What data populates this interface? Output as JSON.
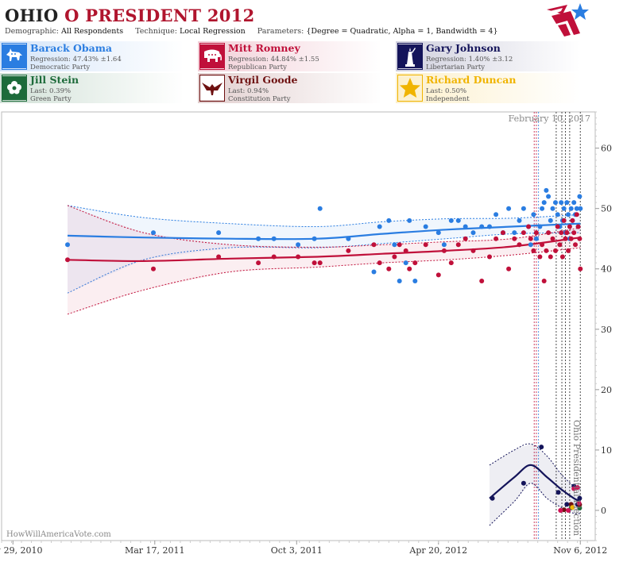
{
  "header": {
    "title_main": "OHIO",
    "title_sub": "O PRESIDENT 2012",
    "demographic_label": "Demographic:",
    "demographic_value": "All Respondents",
    "technique_label": "Technique:",
    "technique_value": "Local Regression",
    "parameters_label": "Parameters:",
    "parameters_value": "{Degree = Quadratic, Alpha = 1, Bandwidth = 4}"
  },
  "candidates": [
    {
      "name": "Barack Obama",
      "line1": "Regression: 47.43% ±1.64",
      "line2": "Democratic Party",
      "color": "#2a7de1",
      "icon": "donkey-icon"
    },
    {
      "name": "Mitt Romney",
      "line1": "Regression: 44.84% ±1.55",
      "line2": "Republican Party",
      "color": "#c0103a",
      "icon": "elephant-icon"
    },
    {
      "name": "Gary Johnson",
      "line1": "Regression: 1.40% ±3.12",
      "line2": "Libertarian Party",
      "color": "#14145a",
      "icon": "statue-of-liberty-icon"
    },
    {
      "name": "Jill Stein",
      "line1": "Last: 0.39%",
      "line2": "Green Party",
      "color": "#1d6b3a",
      "icon": "flower-icon"
    },
    {
      "name": "Virgil Goode",
      "line1": "Last: 0.94%",
      "line2": "Constitution Party",
      "color": "#6e1111",
      "icon": "eagle-icon"
    },
    {
      "name": "Richard Duncan",
      "line1": "Last: 0.50%",
      "line2": "Independent",
      "color": "#f0b400",
      "icon": "star-icon"
    }
  ],
  "chart_data": {
    "type": "scatter",
    "date_label": "February 10, 2017",
    "watermark": "HowWillAmericaVote.com",
    "election_label": "Ohio Presidential Election",
    "ylim": [
      -5,
      66
    ],
    "yticks": [
      0,
      10,
      20,
      30,
      40,
      50,
      60
    ],
    "xlim": [
      "2010-08-13",
      "2012-11-27"
    ],
    "xticks": [
      {
        "label": "Aug 29, 2010",
        "date": "2010-08-29"
      },
      {
        "label": "Mar 17, 2011",
        "date": "2011-03-17"
      },
      {
        "label": "Oct 3, 2011",
        "date": "2011-10-03"
      },
      {
        "label": "Apr 20, 2012",
        "date": "2012-04-20"
      },
      {
        "label": "Nov 6, 2012",
        "date": "2012-11-06"
      }
    ],
    "vlines": [
      {
        "date": "2012-09-02",
        "color": "#c0103a"
      },
      {
        "date": "2012-09-05",
        "color": "#c0103a"
      },
      {
        "date": "2012-09-08",
        "color": "#2a7de1"
      },
      {
        "date": "2012-10-03",
        "color": "#222222"
      },
      {
        "date": "2012-10-11",
        "color": "#222222"
      },
      {
        "date": "2012-10-16",
        "color": "#222222"
      },
      {
        "date": "2012-10-22",
        "color": "#222222"
      },
      {
        "date": "2012-11-06",
        "color": "#222222"
      }
    ],
    "series": [
      {
        "name": "Barack Obama",
        "color": "#2a7de1",
        "trend": [
          [
            "2010-11-14",
            45.5
          ],
          [
            "2011-03-01",
            45.2
          ],
          [
            "2011-07-01",
            45.0
          ],
          [
            "2011-11-01",
            45.0
          ],
          [
            "2012-02-01",
            45.8
          ],
          [
            "2012-05-01",
            46.5
          ],
          [
            "2012-08-01",
            47.0
          ],
          [
            "2012-11-06",
            47.5
          ]
        ],
        "band_upper": [
          [
            "2010-11-14",
            50.5
          ],
          [
            "2011-03-01",
            48.5
          ],
          [
            "2011-07-01",
            47.5
          ],
          [
            "2011-11-01",
            47.0
          ],
          [
            "2012-02-01",
            47.8
          ],
          [
            "2012-05-01",
            48.3
          ],
          [
            "2012-08-01",
            48.4
          ],
          [
            "2012-11-06",
            49.0
          ]
        ],
        "band_lower": [
          [
            "2010-11-14",
            36.0
          ],
          [
            "2011-03-01",
            41.5
          ],
          [
            "2011-07-01",
            43.5
          ],
          [
            "2011-11-01",
            43.5
          ],
          [
            "2012-02-01",
            44.2
          ],
          [
            "2012-05-01",
            45.0
          ],
          [
            "2012-08-01",
            45.8
          ],
          [
            "2012-11-06",
            46.0
          ]
        ],
        "points": [
          [
            "2010-11-14",
            44
          ],
          [
            "2011-03-15",
            46
          ],
          [
            "2011-06-15",
            46
          ],
          [
            "2011-08-10",
            45
          ],
          [
            "2011-09-01",
            45
          ],
          [
            "2011-10-05",
            44
          ],
          [
            "2011-10-28",
            45
          ],
          [
            "2011-11-05",
            50
          ],
          [
            "2011-12-15",
            45
          ],
          [
            "2012-01-20",
            39.5
          ],
          [
            "2012-01-28",
            47
          ],
          [
            "2012-02-10",
            48
          ],
          [
            "2012-02-18",
            44
          ],
          [
            "2012-02-25",
            38
          ],
          [
            "2012-03-05",
            41
          ],
          [
            "2012-03-10",
            48
          ],
          [
            "2012-03-18",
            38
          ],
          [
            "2012-04-02",
            47
          ],
          [
            "2012-04-20",
            46
          ],
          [
            "2012-04-28",
            44
          ],
          [
            "2012-05-08",
            48
          ],
          [
            "2012-05-18",
            48
          ],
          [
            "2012-05-28",
            47
          ],
          [
            "2012-06-08",
            46
          ],
          [
            "2012-06-20",
            47
          ],
          [
            "2012-07-01",
            47
          ],
          [
            "2012-07-10",
            49
          ],
          [
            "2012-07-20",
            46
          ],
          [
            "2012-07-28",
            50
          ],
          [
            "2012-08-05",
            46
          ],
          [
            "2012-08-12",
            48
          ],
          [
            "2012-08-18",
            50
          ],
          [
            "2012-08-25",
            47
          ],
          [
            "2012-08-28",
            44
          ],
          [
            "2012-09-01",
            49
          ],
          [
            "2012-09-05",
            45
          ],
          [
            "2012-09-10",
            47
          ],
          [
            "2012-09-13",
            50
          ],
          [
            "2012-09-16",
            51
          ],
          [
            "2012-09-19",
            53
          ],
          [
            "2012-09-22",
            52
          ],
          [
            "2012-09-25",
            48
          ],
          [
            "2012-09-28",
            50
          ],
          [
            "2012-10-02",
            51
          ],
          [
            "2012-10-05",
            49
          ],
          [
            "2012-10-08",
            47
          ],
          [
            "2012-10-10",
            51
          ],
          [
            "2012-10-12",
            48
          ],
          [
            "2012-10-14",
            50
          ],
          [
            "2012-10-16",
            46
          ],
          [
            "2012-10-18",
            51
          ],
          [
            "2012-10-20",
            49
          ],
          [
            "2012-10-22",
            45
          ],
          [
            "2012-10-24",
            50
          ],
          [
            "2012-10-26",
            48
          ],
          [
            "2012-10-28",
            51
          ],
          [
            "2012-10-30",
            49
          ],
          [
            "2012-11-01",
            50
          ],
          [
            "2012-11-03",
            47
          ],
          [
            "2012-11-05",
            52
          ],
          [
            "2012-11-06",
            50
          ]
        ]
      },
      {
        "name": "Mitt Romney",
        "color": "#c0103a",
        "trend": [
          [
            "2010-11-14",
            41.5
          ],
          [
            "2011-03-01",
            41.3
          ],
          [
            "2011-07-01",
            41.7
          ],
          [
            "2011-11-01",
            42.0
          ],
          [
            "2012-02-01",
            42.5
          ],
          [
            "2012-05-01",
            43.0
          ],
          [
            "2012-08-01",
            43.7
          ],
          [
            "2012-11-06",
            45.2
          ]
        ],
        "band_upper": [
          [
            "2010-11-14",
            50.5
          ],
          [
            "2011-03-01",
            46.0
          ],
          [
            "2011-07-01",
            44.0
          ],
          [
            "2011-11-01",
            43.6
          ],
          [
            "2012-02-01",
            44.0
          ],
          [
            "2012-05-01",
            44.5
          ],
          [
            "2012-08-01",
            45.0
          ],
          [
            "2012-11-06",
            46.8
          ]
        ],
        "band_lower": [
          [
            "2010-11-14",
            32.5
          ],
          [
            "2011-03-01",
            36.5
          ],
          [
            "2011-07-01",
            39.5
          ],
          [
            "2011-11-01",
            40.3
          ],
          [
            "2012-02-01",
            41.0
          ],
          [
            "2012-05-01",
            41.5
          ],
          [
            "2012-08-01",
            42.3
          ],
          [
            "2012-11-06",
            43.5
          ]
        ],
        "points": [
          [
            "2010-11-14",
            41.5
          ],
          [
            "2011-03-15",
            40
          ],
          [
            "2011-06-15",
            42
          ],
          [
            "2011-08-10",
            41
          ],
          [
            "2011-09-01",
            42
          ],
          [
            "2011-10-05",
            42
          ],
          [
            "2011-10-28",
            41
          ],
          [
            "2011-11-05",
            41
          ],
          [
            "2011-12-15",
            43
          ],
          [
            "2012-01-20",
            44
          ],
          [
            "2012-01-28",
            41
          ],
          [
            "2012-02-10",
            40
          ],
          [
            "2012-02-18",
            42
          ],
          [
            "2012-02-25",
            44
          ],
          [
            "2012-03-05",
            43
          ],
          [
            "2012-03-10",
            40
          ],
          [
            "2012-03-18",
            41
          ],
          [
            "2012-04-02",
            44
          ],
          [
            "2012-04-20",
            39
          ],
          [
            "2012-04-28",
            43
          ],
          [
            "2012-05-08",
            41
          ],
          [
            "2012-05-18",
            44
          ],
          [
            "2012-05-28",
            45
          ],
          [
            "2012-06-08",
            43
          ],
          [
            "2012-06-20",
            38
          ],
          [
            "2012-07-01",
            42
          ],
          [
            "2012-07-10",
            45
          ],
          [
            "2012-07-20",
            46
          ],
          [
            "2012-07-28",
            40
          ],
          [
            "2012-08-05",
            45
          ],
          [
            "2012-08-12",
            44
          ],
          [
            "2012-08-18",
            46
          ],
          [
            "2012-08-25",
            47
          ],
          [
            "2012-08-28",
            45
          ],
          [
            "2012-09-01",
            43
          ],
          [
            "2012-09-05",
            46
          ],
          [
            "2012-09-10",
            42
          ],
          [
            "2012-09-13",
            44
          ],
          [
            "2012-09-16",
            38
          ],
          [
            "2012-09-19",
            43
          ],
          [
            "2012-09-22",
            46
          ],
          [
            "2012-09-25",
            42
          ],
          [
            "2012-09-28",
            45
          ],
          [
            "2012-10-02",
            43
          ],
          [
            "2012-10-05",
            47
          ],
          [
            "2012-10-08",
            44
          ],
          [
            "2012-10-10",
            46
          ],
          [
            "2012-10-12",
            42
          ],
          [
            "2012-10-14",
            48
          ],
          [
            "2012-10-16",
            45
          ],
          [
            "2012-10-18",
            46
          ],
          [
            "2012-10-20",
            43
          ],
          [
            "2012-10-22",
            47
          ],
          [
            "2012-10-24",
            45
          ],
          [
            "2012-10-26",
            48
          ],
          [
            "2012-10-28",
            46
          ],
          [
            "2012-10-30",
            44
          ],
          [
            "2012-11-01",
            49
          ],
          [
            "2012-11-03",
            47
          ],
          [
            "2012-11-05",
            45
          ],
          [
            "2012-11-06",
            40
          ]
        ]
      },
      {
        "name": "Gary Johnson",
        "color": "#14145a",
        "trend": [
          [
            "2012-07-01",
            2.0
          ],
          [
            "2012-08-05",
            5.5
          ],
          [
            "2012-08-28",
            7.5
          ],
          [
            "2012-09-20",
            5.5
          ],
          [
            "2012-10-10",
            3.5
          ],
          [
            "2012-10-28",
            2.0
          ],
          [
            "2012-11-06",
            1.5
          ]
        ],
        "band_upper": [
          [
            "2012-07-01",
            7.5
          ],
          [
            "2012-08-05",
            10.0
          ],
          [
            "2012-08-28",
            11.0
          ],
          [
            "2012-09-20",
            9.0
          ],
          [
            "2012-10-10",
            6.0
          ],
          [
            "2012-10-28",
            4.0
          ],
          [
            "2012-11-06",
            3.5
          ]
        ],
        "band_lower": [
          [
            "2012-07-01",
            -2.5
          ],
          [
            "2012-08-05",
            1.5
          ],
          [
            "2012-08-28",
            4.5
          ],
          [
            "2012-09-20",
            2.0
          ],
          [
            "2012-10-10",
            0.5
          ],
          [
            "2012-10-28",
            -0.5
          ],
          [
            "2012-11-06",
            -0.5
          ]
        ],
        "points": [
          [
            "2012-07-05",
            2
          ],
          [
            "2012-08-18",
            4.5
          ],
          [
            "2012-09-12",
            10.5
          ],
          [
            "2012-10-06",
            3
          ],
          [
            "2012-10-18",
            1
          ],
          [
            "2012-10-28",
            4
          ],
          [
            "2012-11-02",
            1
          ],
          [
            "2012-11-05",
            2
          ]
        ]
      },
      {
        "name": "Jill Stein",
        "color": "#1d6b3a",
        "points": [
          [
            "2012-10-24",
            0.4
          ],
          [
            "2012-11-05",
            0.39
          ]
        ]
      },
      {
        "name": "Virgil Goode",
        "color": "#6e1111",
        "points": [
          [
            "2012-10-14",
            0.1
          ],
          [
            "2012-10-24",
            1.0
          ],
          [
            "2012-11-05",
            0.94
          ]
        ]
      },
      {
        "name": "Richard Duncan",
        "color": "#f0b400",
        "points": [
          [
            "2012-10-26",
            0.5
          ]
        ]
      },
      {
        "name": "Other",
        "color": "#d01055",
        "points": [
          [
            "2012-10-09",
            0
          ],
          [
            "2012-10-20",
            0
          ],
          [
            "2012-10-28",
            3.6
          ],
          [
            "2012-11-02",
            3.8
          ],
          [
            "2012-11-04",
            1.2
          ]
        ]
      }
    ]
  }
}
